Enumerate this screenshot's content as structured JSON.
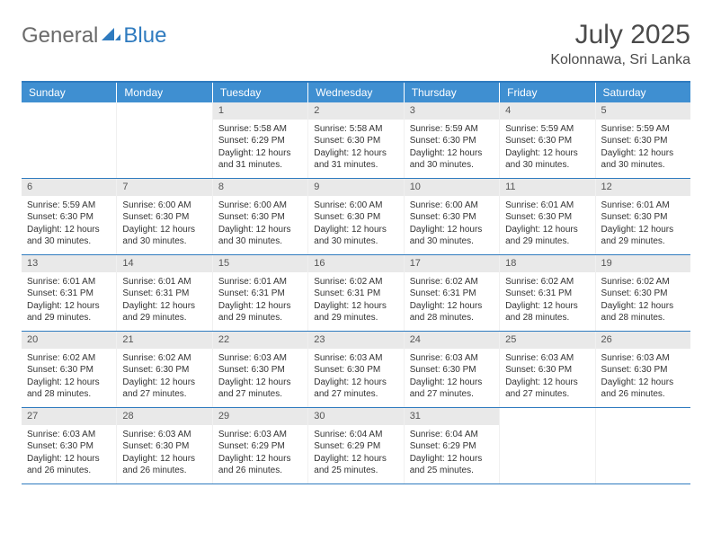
{
  "brand": {
    "part1": "General",
    "part2": "Blue"
  },
  "title": "July 2025",
  "location": "Kolonnawa, Sri Lanka",
  "colors": {
    "header_bar": "#3f8fd1",
    "rule": "#2f7bbf",
    "daynum_bg": "#e9e9e9",
    "text": "#333333",
    "logo_gray": "#6b6b6b",
    "logo_blue": "#2f7bbf"
  },
  "days_of_week": [
    "Sunday",
    "Monday",
    "Tuesday",
    "Wednesday",
    "Thursday",
    "Friday",
    "Saturday"
  ],
  "weeks": [
    [
      null,
      null,
      {
        "n": "1",
        "sr": "5:58 AM",
        "ss": "6:29 PM",
        "dl": "12 hours and 31 minutes."
      },
      {
        "n": "2",
        "sr": "5:58 AM",
        "ss": "6:30 PM",
        "dl": "12 hours and 31 minutes."
      },
      {
        "n": "3",
        "sr": "5:59 AM",
        "ss": "6:30 PM",
        "dl": "12 hours and 30 minutes."
      },
      {
        "n": "4",
        "sr": "5:59 AM",
        "ss": "6:30 PM",
        "dl": "12 hours and 30 minutes."
      },
      {
        "n": "5",
        "sr": "5:59 AM",
        "ss": "6:30 PM",
        "dl": "12 hours and 30 minutes."
      }
    ],
    [
      {
        "n": "6",
        "sr": "5:59 AM",
        "ss": "6:30 PM",
        "dl": "12 hours and 30 minutes."
      },
      {
        "n": "7",
        "sr": "6:00 AM",
        "ss": "6:30 PM",
        "dl": "12 hours and 30 minutes."
      },
      {
        "n": "8",
        "sr": "6:00 AM",
        "ss": "6:30 PM",
        "dl": "12 hours and 30 minutes."
      },
      {
        "n": "9",
        "sr": "6:00 AM",
        "ss": "6:30 PM",
        "dl": "12 hours and 30 minutes."
      },
      {
        "n": "10",
        "sr": "6:00 AM",
        "ss": "6:30 PM",
        "dl": "12 hours and 30 minutes."
      },
      {
        "n": "11",
        "sr": "6:01 AM",
        "ss": "6:30 PM",
        "dl": "12 hours and 29 minutes."
      },
      {
        "n": "12",
        "sr": "6:01 AM",
        "ss": "6:30 PM",
        "dl": "12 hours and 29 minutes."
      }
    ],
    [
      {
        "n": "13",
        "sr": "6:01 AM",
        "ss": "6:31 PM",
        "dl": "12 hours and 29 minutes."
      },
      {
        "n": "14",
        "sr": "6:01 AM",
        "ss": "6:31 PM",
        "dl": "12 hours and 29 minutes."
      },
      {
        "n": "15",
        "sr": "6:01 AM",
        "ss": "6:31 PM",
        "dl": "12 hours and 29 minutes."
      },
      {
        "n": "16",
        "sr": "6:02 AM",
        "ss": "6:31 PM",
        "dl": "12 hours and 29 minutes."
      },
      {
        "n": "17",
        "sr": "6:02 AM",
        "ss": "6:31 PM",
        "dl": "12 hours and 28 minutes."
      },
      {
        "n": "18",
        "sr": "6:02 AM",
        "ss": "6:31 PM",
        "dl": "12 hours and 28 minutes."
      },
      {
        "n": "19",
        "sr": "6:02 AM",
        "ss": "6:30 PM",
        "dl": "12 hours and 28 minutes."
      }
    ],
    [
      {
        "n": "20",
        "sr": "6:02 AM",
        "ss": "6:30 PM",
        "dl": "12 hours and 28 minutes."
      },
      {
        "n": "21",
        "sr": "6:02 AM",
        "ss": "6:30 PM",
        "dl": "12 hours and 27 minutes."
      },
      {
        "n": "22",
        "sr": "6:03 AM",
        "ss": "6:30 PM",
        "dl": "12 hours and 27 minutes."
      },
      {
        "n": "23",
        "sr": "6:03 AM",
        "ss": "6:30 PM",
        "dl": "12 hours and 27 minutes."
      },
      {
        "n": "24",
        "sr": "6:03 AM",
        "ss": "6:30 PM",
        "dl": "12 hours and 27 minutes."
      },
      {
        "n": "25",
        "sr": "6:03 AM",
        "ss": "6:30 PM",
        "dl": "12 hours and 27 minutes."
      },
      {
        "n": "26",
        "sr": "6:03 AM",
        "ss": "6:30 PM",
        "dl": "12 hours and 26 minutes."
      }
    ],
    [
      {
        "n": "27",
        "sr": "6:03 AM",
        "ss": "6:30 PM",
        "dl": "12 hours and 26 minutes."
      },
      {
        "n": "28",
        "sr": "6:03 AM",
        "ss": "6:30 PM",
        "dl": "12 hours and 26 minutes."
      },
      {
        "n": "29",
        "sr": "6:03 AM",
        "ss": "6:29 PM",
        "dl": "12 hours and 26 minutes."
      },
      {
        "n": "30",
        "sr": "6:04 AM",
        "ss": "6:29 PM",
        "dl": "12 hours and 25 minutes."
      },
      {
        "n": "31",
        "sr": "6:04 AM",
        "ss": "6:29 PM",
        "dl": "12 hours and 25 minutes."
      },
      null,
      null
    ]
  ],
  "labels": {
    "sunrise": "Sunrise: ",
    "sunset": "Sunset: ",
    "daylight": "Daylight: "
  }
}
